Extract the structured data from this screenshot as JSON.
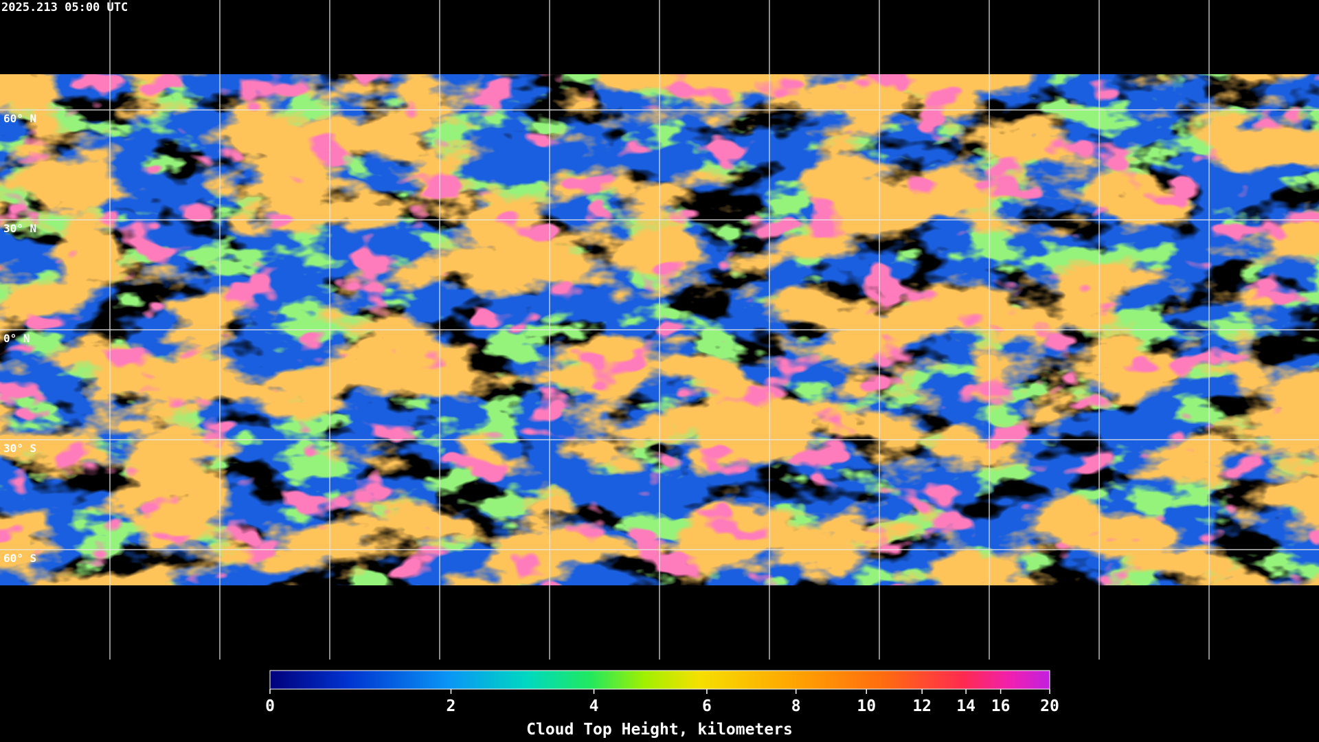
{
  "header": {
    "timestamp": "2025.213 05:00 UTC"
  },
  "map": {
    "latitude_labels": [
      "60° N",
      "30° N",
      "0° N",
      "30° S",
      "60° S"
    ]
  },
  "colorbar": {
    "label": "Cloud Top Height, kilometers",
    "range": [
      0,
      20
    ],
    "ticks": [
      0,
      2,
      4,
      6,
      8,
      10,
      12,
      14,
      16,
      20
    ]
  }
}
